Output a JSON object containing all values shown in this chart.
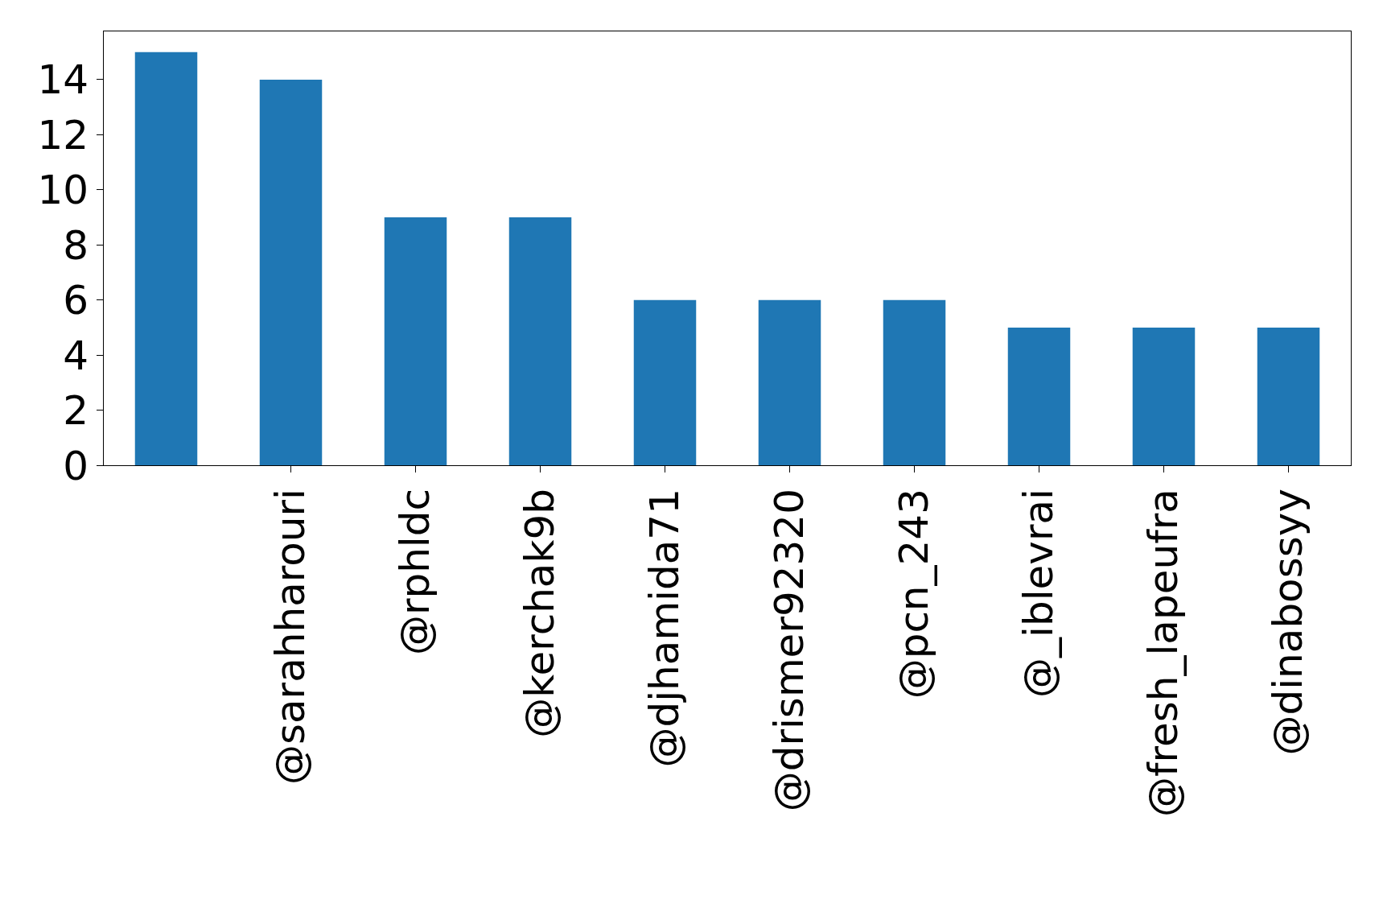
{
  "chart_data": {
    "type": "bar",
    "categories": [
      null,
      "@sarahharouri",
      "@rphldc",
      "@kerchak9b",
      "@djhamida71",
      "@drismer92320",
      "@pcn_243",
      "@_iblevrai",
      "@fresh_lapeufra",
      "@dinabossyy"
    ],
    "values": [
      15,
      14,
      9,
      9,
      6,
      6,
      6,
      5,
      5,
      5
    ],
    "color": "#1f77b4",
    "ylim": [
      0,
      15.75
    ],
    "yticks": [
      0,
      2,
      4,
      6,
      8,
      10,
      12,
      14
    ]
  }
}
